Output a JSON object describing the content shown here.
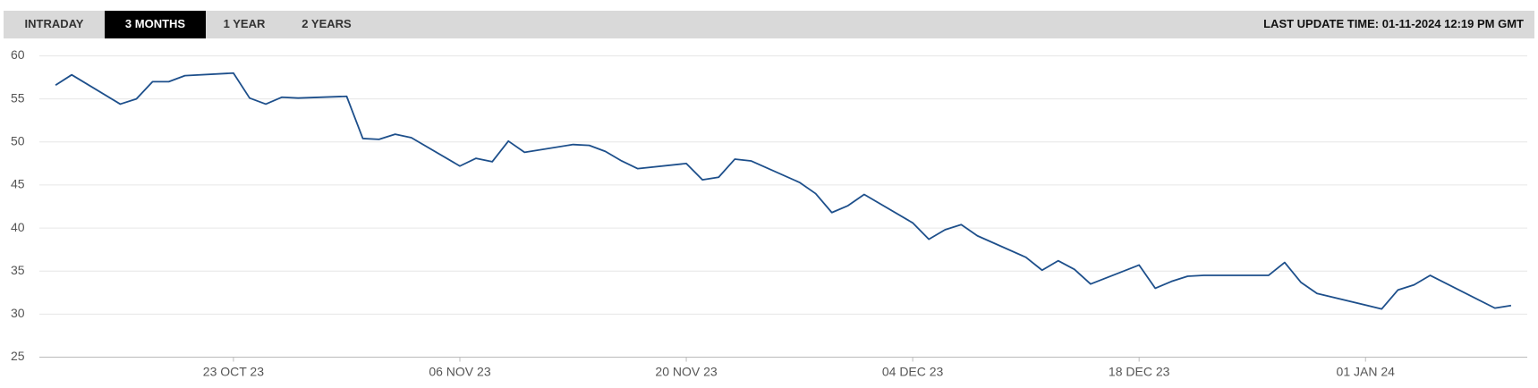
{
  "header": {
    "tabs": [
      "INTRADAY",
      "3 MONTHS",
      "1 YEAR",
      "2 YEARS"
    ],
    "active_tab": 1,
    "last_update": "LAST UPDATE TIME: 01-11-2024 12:19 PM GMT"
  },
  "chart_data": {
    "type": "line",
    "x": [
      "2023-10-12",
      "2023-10-13",
      "2023-10-16",
      "2023-10-17",
      "2023-10-18",
      "2023-10-19",
      "2023-10-20",
      "2023-10-23",
      "2023-10-24",
      "2023-10-25",
      "2023-10-26",
      "2023-10-27",
      "2023-10-30",
      "2023-10-31",
      "2023-11-01",
      "2023-11-02",
      "2023-11-03",
      "2023-11-06",
      "2023-11-07",
      "2023-11-08",
      "2023-11-09",
      "2023-11-10",
      "2023-11-13",
      "2023-11-14",
      "2023-11-15",
      "2023-11-16",
      "2023-11-17",
      "2023-11-20",
      "2023-11-21",
      "2023-11-22",
      "2023-11-23",
      "2023-11-24",
      "2023-11-27",
      "2023-11-28",
      "2023-11-29",
      "2023-11-30",
      "2023-12-01",
      "2023-12-04",
      "2023-12-05",
      "2023-12-06",
      "2023-12-07",
      "2023-12-08",
      "2023-12-11",
      "2023-12-12",
      "2023-12-13",
      "2023-12-14",
      "2023-12-15",
      "2023-12-18",
      "2023-12-19",
      "2023-12-20",
      "2023-12-21",
      "2023-12-22",
      "2023-12-26",
      "2023-12-27",
      "2023-12-28",
      "2023-12-29",
      "2024-01-02",
      "2024-01-03",
      "2024-01-04",
      "2024-01-05",
      "2024-01-09",
      "2024-01-10"
    ],
    "values": [
      56.6,
      57.8,
      54.4,
      55.0,
      57.0,
      57.0,
      57.7,
      58.0,
      55.1,
      54.4,
      55.2,
      55.1,
      55.3,
      50.4,
      50.3,
      50.9,
      50.5,
      47.2,
      48.1,
      47.7,
      50.1,
      48.8,
      49.7,
      49.6,
      48.9,
      47.8,
      46.9,
      47.5,
      45.6,
      45.9,
      48.0,
      47.8,
      45.3,
      44.0,
      41.8,
      42.6,
      43.9,
      40.6,
      38.7,
      39.8,
      40.4,
      39.1,
      36.6,
      35.1,
      36.2,
      35.2,
      33.5,
      35.7,
      33.0,
      33.8,
      34.4,
      34.5,
      34.5,
      36.0,
      33.7,
      32.4,
      30.6,
      32.8,
      33.4,
      34.5,
      30.7,
      31.0
    ],
    "color": "#1d4f8b",
    "xlim": [
      "2023-10-11",
      "2024-01-11"
    ],
    "xticks": [
      {
        "value": "2023-10-23",
        "label": "23 OCT 23"
      },
      {
        "value": "2023-11-06",
        "label": "06 NOV 23"
      },
      {
        "value": "2023-11-20",
        "label": "20 NOV 23"
      },
      {
        "value": "2023-12-04",
        "label": "04 DEC 23"
      },
      {
        "value": "2023-12-18",
        "label": "18 DEC 23"
      },
      {
        "value": "2024-01-01",
        "label": "01 JAN 24"
      }
    ],
    "ylim": [
      25,
      60
    ],
    "yticks": [
      25,
      30,
      35,
      40,
      45,
      50,
      55,
      60
    ],
    "grid": true
  }
}
